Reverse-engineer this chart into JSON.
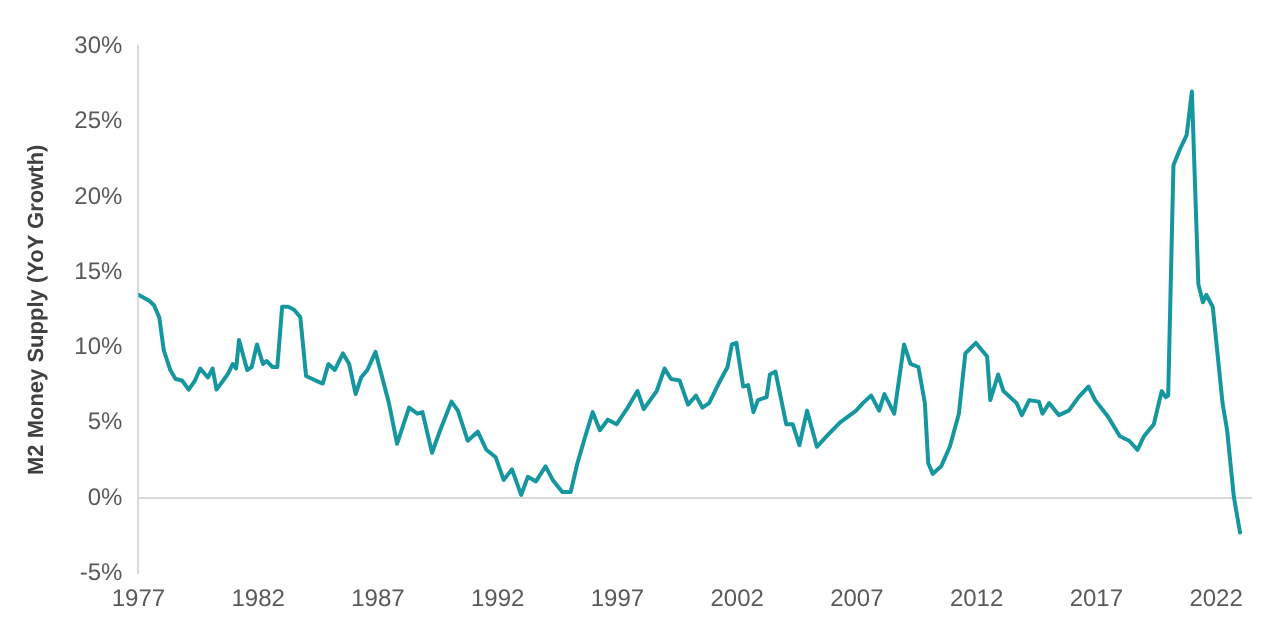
{
  "chart_data": {
    "type": "line",
    "ylabel": "M2 Money Supply (YoY Growth)",
    "x": [
      1977.0,
      1977.45,
      1977.65,
      1977.87,
      1978.06,
      1978.33,
      1978.55,
      1978.82,
      1979.1,
      1979.36,
      1979.58,
      1979.9,
      1980.1,
      1980.26,
      1980.72,
      1980.94,
      1981.08,
      1981.2,
      1981.54,
      1981.73,
      1981.95,
      1982.2,
      1982.35,
      1982.6,
      1982.8,
      1983.0,
      1983.25,
      1983.5,
      1983.76,
      1984.0,
      1984.4,
      1984.7,
      1984.93,
      1985.2,
      1985.54,
      1985.8,
      1986.07,
      1986.3,
      1986.56,
      1986.9,
      1987.18,
      1987.46,
      1987.8,
      1988.3,
      1988.65,
      1988.86,
      1989.26,
      1989.6,
      1990.07,
      1990.34,
      1990.75,
      1991.17,
      1991.53,
      1991.92,
      1992.25,
      1992.6,
      1992.98,
      1993.26,
      1993.6,
      1994.0,
      1994.3,
      1994.7,
      1995.05,
      1995.33,
      1995.66,
      1995.97,
      1996.27,
      1996.6,
      1996.97,
      1997.43,
      1997.84,
      1998.1,
      1998.64,
      1998.97,
      1999.24,
      1999.6,
      1999.95,
      2000.28,
      2000.55,
      2000.83,
      2001.23,
      2001.6,
      2001.78,
      2001.97,
      2002.25,
      2002.46,
      2002.68,
      2002.87,
      2003.23,
      2003.37,
      2003.6,
      2004.05,
      2004.32,
      2004.6,
      2004.92,
      2005.33,
      2005.74,
      2006.29,
      2006.97,
      2007.25,
      2007.6,
      2007.93,
      2008.15,
      2008.56,
      2008.97,
      2009.24,
      2009.57,
      2009.84,
      2009.98,
      2010.17,
      2010.52,
      2010.88,
      2011.26,
      2011.53,
      2011.97,
      2012.44,
      2012.57,
      2012.9,
      2013.12,
      2013.67,
      2013.89,
      2014.2,
      2014.6,
      2014.75,
      2015.03,
      2015.44,
      2015.85,
      2016.26,
      2016.67,
      2016.95,
      2017.49,
      2017.98,
      2018.37,
      2018.72,
      2018.99,
      2019.4,
      2019.73,
      2019.9,
      2020.0,
      2020.22,
      2020.5,
      2020.77,
      2020.99,
      2021.26,
      2021.45,
      2021.59,
      2021.86,
      2022.27,
      2022.46,
      2022.74,
      2023.0
    ],
    "series": [
      {
        "color": "#16979f",
        "values": [
          13.5,
          13.1,
          12.8,
          12.0,
          9.8,
          8.5,
          7.9,
          7.8,
          7.2,
          7.8,
          8.6,
          8.0,
          8.6,
          7.2,
          8.2,
          8.9,
          8.6,
          10.5,
          8.5,
          8.7,
          10.2,
          8.9,
          9.1,
          8.7,
          8.7,
          12.7,
          12.7,
          12.5,
          12.0,
          8.1,
          7.8,
          7.6,
          8.9,
          8.5,
          9.6,
          8.9,
          6.9,
          8.0,
          8.5,
          9.7,
          8.0,
          6.3,
          3.6,
          6.0,
          5.6,
          5.7,
          3.0,
          4.5,
          6.4,
          5.8,
          3.8,
          4.4,
          3.2,
          2.7,
          1.2,
          1.9,
          0.2,
          1.4,
          1.1,
          2.1,
          1.2,
          0.4,
          0.4,
          2.3,
          4.1,
          5.7,
          4.5,
          5.2,
          4.9,
          6.0,
          7.1,
          5.9,
          7.1,
          8.6,
          7.9,
          7.8,
          6.2,
          6.8,
          6.0,
          6.3,
          7.6,
          8.7,
          10.2,
          10.3,
          7.4,
          7.5,
          5.7,
          6.5,
          6.7,
          8.2,
          8.4,
          4.9,
          4.9,
          3.5,
          5.8,
          3.4,
          4.1,
          5.0,
          5.8,
          6.3,
          6.8,
          5.8,
          6.9,
          5.6,
          10.2,
          8.9,
          8.7,
          6.3,
          2.3,
          1.6,
          2.1,
          3.4,
          5.6,
          9.6,
          10.3,
          9.4,
          6.5,
          8.2,
          7.1,
          6.3,
          5.5,
          6.5,
          6.4,
          5.6,
          6.3,
          5.5,
          5.8,
          6.7,
          7.4,
          6.5,
          5.4,
          4.1,
          3.8,
          3.2,
          4.1,
          4.9,
          7.1,
          6.7,
          6.8,
          22.1,
          23.2,
          24.1,
          27.0,
          14.2,
          13.0,
          13.5,
          12.7,
          6.3,
          4.5,
          0.1,
          -2.3
        ]
      }
    ],
    "xlim": [
      1977,
      2023.5
    ],
    "xticks": [
      1977,
      1982,
      1987,
      1992,
      1997,
      2002,
      2007,
      2012,
      2017,
      2022
    ],
    "ylim": [
      -5,
      30
    ],
    "yticks": [
      {
        "value": -5,
        "label": "-5%"
      },
      {
        "value": 0,
        "label": "0%"
      },
      {
        "value": 5,
        "label": "5%"
      },
      {
        "value": 10,
        "label": "10%"
      },
      {
        "value": 15,
        "label": "15%"
      },
      {
        "value": 20,
        "label": "20%"
      },
      {
        "value": 25,
        "label": "25%"
      },
      {
        "value": 30,
        "label": "30%"
      }
    ],
    "ref_lines": [
      {
        "axis": "y",
        "value": 0,
        "color": "#d9d9d9"
      }
    ],
    "grid": false,
    "legend": false,
    "marker": "none",
    "line_style": "solid"
  }
}
